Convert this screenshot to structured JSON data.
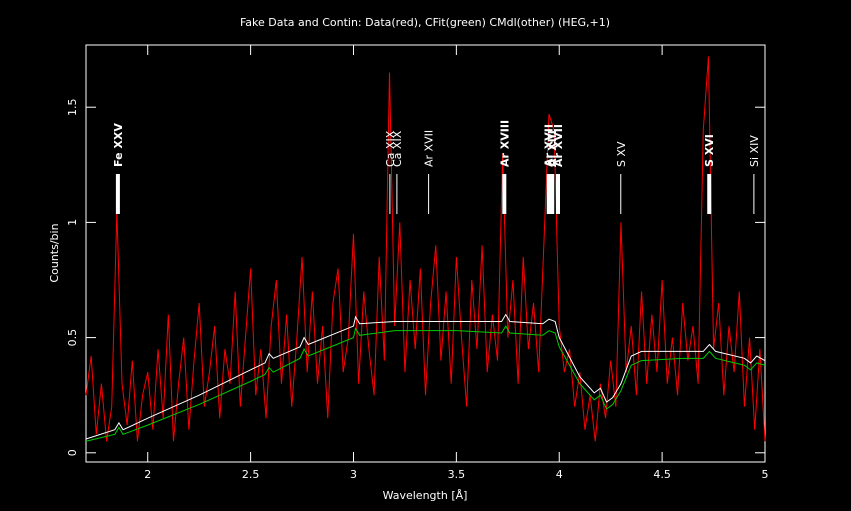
{
  "chart_data": {
    "type": "line",
    "title": "Fake Data and Contin: Data(red), CFit(green) CMdl(other) (HEG,+1)",
    "x_label": "Wavelength [Å]",
    "y_label": "Counts/bin",
    "xlim": [
      1.7,
      5
    ],
    "ylim": [
      -0.04,
      1.77
    ],
    "xticks": [
      2,
      2.5,
      3,
      3.5,
      4,
      4.5,
      5
    ],
    "yticks": [
      0,
      0.5,
      1,
      1.5
    ],
    "series": [
      {
        "name": "Data",
        "color": "#ff0000",
        "x": [
          1.7,
          1.725,
          1.75,
          1.775,
          1.8,
          1.825,
          1.85,
          1.875,
          1.9,
          1.925,
          1.95,
          1.975,
          2,
          2.025,
          2.05,
          2.075,
          2.1,
          2.125,
          2.15,
          2.175,
          2.2,
          2.225,
          2.25,
          2.275,
          2.3,
          2.325,
          2.35,
          2.375,
          2.4,
          2.425,
          2.45,
          2.475,
          2.5,
          2.525,
          2.55,
          2.575,
          2.6,
          2.625,
          2.65,
          2.675,
          2.7,
          2.725,
          2.75,
          2.775,
          2.8,
          2.825,
          2.85,
          2.875,
          2.9,
          2.925,
          2.95,
          2.975,
          3,
          3.025,
          3.05,
          3.075,
          3.1,
          3.125,
          3.15,
          3.175,
          3.2,
          3.225,
          3.25,
          3.275,
          3.3,
          3.325,
          3.35,
          3.375,
          3.4,
          3.425,
          3.45,
          3.475,
          3.5,
          3.525,
          3.55,
          3.575,
          3.6,
          3.625,
          3.65,
          3.675,
          3.7,
          3.725,
          3.75,
          3.775,
          3.8,
          3.825,
          3.85,
          3.875,
          3.9,
          3.925,
          3.95,
          3.975,
          4,
          4.025,
          4.05,
          4.075,
          4.1,
          4.125,
          4.15,
          4.175,
          4.2,
          4.225,
          4.25,
          4.275,
          4.3,
          4.325,
          4.35,
          4.375,
          4.4,
          4.425,
          4.45,
          4.475,
          4.5,
          4.525,
          4.55,
          4.575,
          4.6,
          4.625,
          4.65,
          4.675,
          4.7,
          4.725,
          4.75,
          4.775,
          4.8,
          4.825,
          4.85,
          4.875,
          4.9,
          4.925,
          4.95,
          4.975,
          5
        ],
        "values": [
          0.25,
          0.42,
          0.08,
          0.3,
          0.05,
          0.2,
          1.05,
          0.3,
          0.12,
          0.4,
          0.05,
          0.25,
          0.35,
          0.1,
          0.45,
          0.15,
          0.6,
          0.05,
          0.3,
          0.5,
          0.1,
          0.4,
          0.65,
          0.2,
          0.35,
          0.55,
          0.15,
          0.45,
          0.3,
          0.7,
          0.2,
          0.5,
          0.8,
          0.25,
          0.45,
          0.15,
          0.55,
          0.75,
          0.3,
          0.6,
          0.2,
          0.5,
          0.85,
          0.35,
          0.7,
          0.3,
          0.55,
          0.15,
          0.65,
          0.8,
          0.35,
          0.5,
          0.95,
          0.3,
          0.7,
          0.45,
          0.25,
          0.85,
          0.4,
          1.65,
          0.55,
          1.0,
          0.35,
          0.75,
          0.45,
          0.8,
          0.25,
          0.65,
          0.9,
          0.4,
          0.7,
          0.3,
          0.85,
          0.5,
          0.2,
          0.75,
          0.45,
          0.9,
          0.35,
          0.6,
          0.4,
          1.3,
          0.5,
          0.75,
          0.3,
          0.85,
          0.45,
          0.65,
          0.35,
          0.9,
          1.47,
          1.4,
          0.55,
          0.35,
          0.45,
          0.2,
          0.35,
          0.1,
          0.25,
          0.05,
          0.3,
          0.15,
          0.4,
          0.2,
          1.0,
          0.35,
          0.55,
          0.25,
          0.7,
          0.3,
          0.6,
          0.35,
          0.75,
          0.3,
          0.5,
          0.25,
          0.65,
          0.4,
          0.55,
          0.3,
          1.4,
          1.72,
          0.45,
          0.65,
          0.25,
          0.55,
          0.35,
          0.7,
          0.2,
          0.5,
          0.1,
          0.45,
          0.05
        ]
      },
      {
        "name": "CMdl",
        "color": "#ffffff",
        "x": [
          1.7,
          1.84,
          1.86,
          1.88,
          2.0,
          2.25,
          2.5,
          2.57,
          2.59,
          2.61,
          2.74,
          2.76,
          2.78,
          3.0,
          3.01,
          3.03,
          3.2,
          3.5,
          3.72,
          3.74,
          3.76,
          3.92,
          3.95,
          3.98,
          4.0,
          4.1,
          4.17,
          4.2,
          4.23,
          4.26,
          4.3,
          4.35,
          4.4,
          4.6,
          4.7,
          4.73,
          4.76,
          4.9,
          4.93,
          4.96,
          5.0
        ],
        "values": [
          0.06,
          0.1,
          0.13,
          0.1,
          0.15,
          0.25,
          0.36,
          0.39,
          0.43,
          0.41,
          0.46,
          0.5,
          0.47,
          0.55,
          0.59,
          0.56,
          0.57,
          0.57,
          0.57,
          0.6,
          0.57,
          0.56,
          0.58,
          0.57,
          0.5,
          0.33,
          0.26,
          0.28,
          0.22,
          0.24,
          0.3,
          0.42,
          0.44,
          0.44,
          0.44,
          0.47,
          0.44,
          0.41,
          0.39,
          0.42,
          0.4
        ]
      },
      {
        "name": "CFit",
        "color": "#00cc00",
        "x": [
          1.7,
          1.84,
          1.86,
          1.88,
          2.0,
          2.25,
          2.5,
          2.57,
          2.59,
          2.61,
          2.74,
          2.76,
          2.78,
          3.0,
          3.01,
          3.03,
          3.2,
          3.5,
          3.72,
          3.74,
          3.76,
          3.92,
          3.95,
          3.98,
          4.0,
          4.1,
          4.17,
          4.2,
          4.23,
          4.26,
          4.3,
          4.35,
          4.4,
          4.6,
          4.7,
          4.73,
          4.76,
          4.9,
          4.93,
          4.96,
          5.0
        ],
        "values": [
          0.05,
          0.08,
          0.11,
          0.08,
          0.12,
          0.21,
          0.31,
          0.34,
          0.37,
          0.35,
          0.41,
          0.45,
          0.42,
          0.5,
          0.54,
          0.51,
          0.53,
          0.53,
          0.52,
          0.55,
          0.52,
          0.51,
          0.53,
          0.52,
          0.46,
          0.3,
          0.23,
          0.25,
          0.19,
          0.21,
          0.27,
          0.38,
          0.4,
          0.41,
          0.41,
          0.44,
          0.41,
          0.38,
          0.36,
          0.39,
          0.38
        ]
      }
    ],
    "lines": [
      {
        "label": "Fe XXV",
        "x": 1.855,
        "bold": true
      },
      {
        "label": "Ca XIX",
        "x": 3.177,
        "bold": false
      },
      {
        "label": "Ca XIX",
        "x": 3.211,
        "bold": false
      },
      {
        "label": "Ar XVII",
        "x": 3.365,
        "bold": false
      },
      {
        "label": "Ar XVIII",
        "x": 3.733,
        "bold": true
      },
      {
        "label": "Ar XVII",
        "x": 3.949,
        "bold": true
      },
      {
        "label": "Al XIII",
        "x": 3.966,
        "bold": true
      },
      {
        "label": "Ar XVII",
        "x": 3.994,
        "bold": true
      },
      {
        "label": "S XV",
        "x": 4.299,
        "bold": false
      },
      {
        "label": "S XVI",
        "x": 4.729,
        "bold": true
      },
      {
        "label": "Si XIV",
        "x": 4.946,
        "bold": false
      }
    ]
  }
}
